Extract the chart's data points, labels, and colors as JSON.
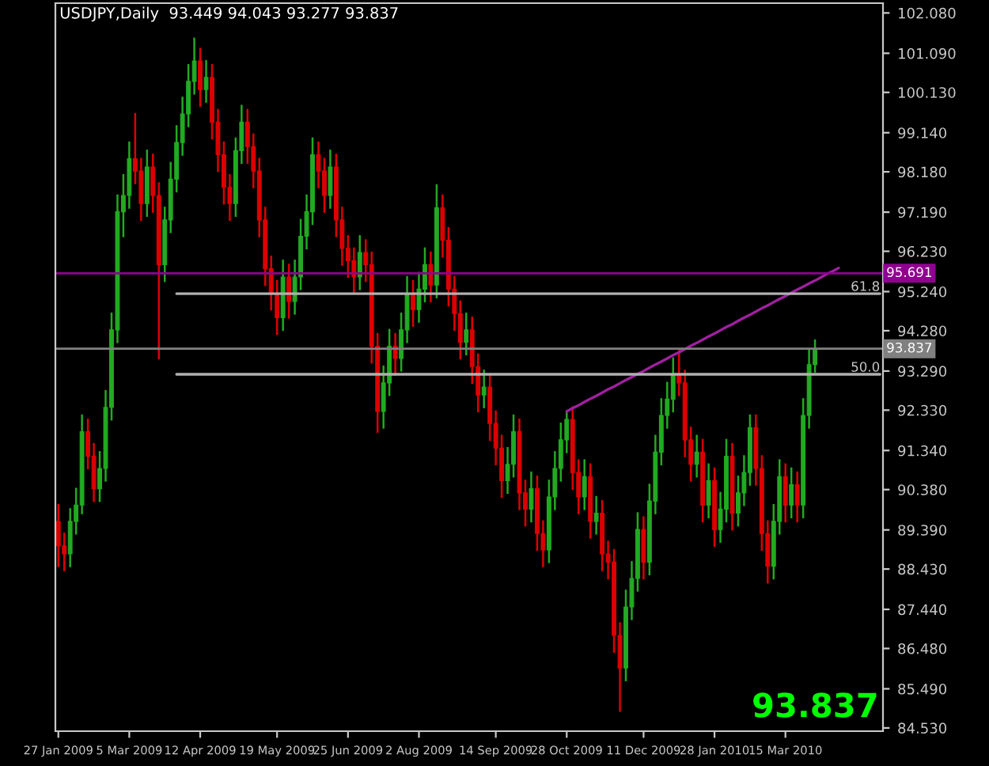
{
  "chart_data": {
    "type": "candlestick",
    "title": "USDJPY,Daily  93.449 94.043 93.277 93.837",
    "categories": [
      "27 Jan 2009",
      null,
      null,
      null,
      null,
      null,
      null,
      null,
      null,
      null,
      null,
      null,
      "5 Mar 2009",
      null,
      null,
      null,
      null,
      null,
      null,
      null,
      null,
      null,
      null,
      null,
      "12 Apr 2009",
      null,
      null,
      null,
      null,
      null,
      null,
      null,
      null,
      null,
      null,
      null,
      null,
      "19 May 2009",
      null,
      null,
      null,
      null,
      null,
      null,
      null,
      null,
      null,
      null,
      null,
      "25 Jun 2009",
      null,
      null,
      null,
      null,
      null,
      null,
      null,
      null,
      null,
      null,
      null,
      "2 Aug 2009",
      null,
      null,
      null,
      null,
      null,
      null,
      null,
      null,
      null,
      null,
      null,
      null,
      "14 Sep 2009",
      null,
      null,
      null,
      null,
      null,
      null,
      null,
      null,
      null,
      null,
      null,
      "28 Oct 2009",
      null,
      null,
      null,
      null,
      null,
      null,
      null,
      null,
      null,
      null,
      null,
      null,
      "11 Dec 2009",
      null,
      null,
      null,
      null,
      null,
      null,
      null,
      null,
      null,
      null,
      null,
      "28 Jan 2010",
      null,
      null,
      null,
      null,
      null,
      null,
      null,
      null,
      null,
      null,
      null,
      "15 Mar 2010",
      null,
      null,
      null,
      null,
      null,
      null,
      null,
      null,
      null,
      null,
      null,
      null,
      null,
      null,
      null,
      null
    ],
    "ohlc": [
      [
        89.6,
        90.0,
        88.5,
        89.0
      ],
      [
        89.0,
        89.3,
        88.4,
        88.8
      ],
      [
        88.8,
        89.9,
        88.5,
        89.6
      ],
      [
        89.6,
        90.4,
        89.3,
        90.0
      ],
      [
        90.0,
        92.2,
        89.8,
        91.8
      ],
      [
        91.8,
        92.1,
        90.9,
        91.2
      ],
      [
        91.2,
        91.5,
        90.1,
        90.4
      ],
      [
        90.4,
        91.3,
        90.1,
        90.9
      ],
      [
        90.9,
        92.8,
        90.6,
        92.4
      ],
      [
        92.4,
        94.7,
        92.1,
        94.3
      ],
      [
        94.3,
        97.6,
        94.0,
        97.2
      ],
      [
        97.2,
        98.1,
        96.6,
        97.6
      ],
      [
        97.6,
        98.9,
        97.3,
        98.5
      ],
      [
        98.5,
        99.6,
        97.9,
        98.2
      ],
      [
        98.2,
        98.5,
        97.0,
        97.4
      ],
      [
        97.4,
        98.7,
        97.1,
        98.3
      ],
      [
        98.3,
        98.6,
        97.2,
        97.6
      ],
      [
        97.6,
        97.9,
        93.6,
        95.9
      ],
      [
        95.9,
        97.3,
        95.5,
        97.0
      ],
      [
        97.0,
        98.4,
        96.7,
        98.0
      ],
      [
        98.0,
        99.3,
        97.7,
        98.9
      ],
      [
        98.9,
        100.0,
        98.6,
        99.6
      ],
      [
        99.6,
        100.8,
        99.3,
        100.4
      ],
      [
        100.4,
        101.45,
        100.1,
        100.9
      ],
      [
        100.9,
        101.2,
        99.8,
        100.2
      ],
      [
        100.2,
        100.9,
        99.9,
        100.5
      ],
      [
        100.5,
        100.8,
        99.0,
        99.4
      ],
      [
        99.4,
        99.7,
        98.2,
        98.6
      ],
      [
        98.6,
        98.9,
        97.4,
        97.8
      ],
      [
        97.8,
        98.1,
        97.0,
        97.4
      ],
      [
        97.4,
        99.0,
        97.1,
        98.7
      ],
      [
        98.7,
        99.8,
        98.4,
        99.4
      ],
      [
        99.4,
        99.7,
        98.4,
        98.8
      ],
      [
        98.8,
        99.1,
        97.8,
        98.2
      ],
      [
        98.2,
        98.5,
        96.6,
        97.0
      ],
      [
        97.0,
        97.3,
        95.4,
        95.8
      ],
      [
        95.8,
        96.1,
        94.8,
        95.2
      ],
      [
        95.2,
        95.5,
        94.2,
        94.6
      ],
      [
        94.6,
        96.0,
        94.3,
        95.6
      ],
      [
        95.6,
        95.9,
        94.6,
        95.0
      ],
      [
        95.0,
        96.0,
        94.7,
        95.6
      ],
      [
        95.6,
        97.0,
        95.3,
        96.6
      ],
      [
        96.6,
        97.6,
        96.3,
        97.2
      ],
      [
        97.2,
        99.0,
        96.9,
        98.6
      ],
      [
        98.6,
        98.9,
        97.8,
        98.2
      ],
      [
        98.2,
        98.5,
        97.2,
        97.6
      ],
      [
        97.6,
        98.7,
        97.3,
        98.3
      ],
      [
        98.3,
        98.6,
        96.6,
        97.0
      ],
      [
        97.0,
        97.3,
        95.9,
        96.3
      ],
      [
        96.3,
        96.6,
        95.6,
        96.0
      ],
      [
        96.0,
        96.3,
        95.2,
        95.6
      ],
      [
        95.6,
        96.6,
        95.3,
        96.2
      ],
      [
        96.2,
        96.5,
        95.5,
        95.9
      ],
      [
        95.9,
        96.2,
        93.5,
        93.9
      ],
      [
        93.9,
        94.2,
        91.8,
        92.3
      ],
      [
        92.3,
        93.4,
        91.9,
        93.0
      ],
      [
        93.0,
        94.3,
        92.7,
        93.9
      ],
      [
        93.9,
        94.2,
        93.2,
        93.6
      ],
      [
        93.6,
        94.7,
        93.3,
        94.3
      ],
      [
        94.3,
        95.6,
        94.0,
        95.2
      ],
      [
        95.2,
        95.5,
        94.4,
        94.8
      ],
      [
        94.8,
        95.7,
        94.5,
        95.3
      ],
      [
        95.3,
        96.3,
        95.0,
        95.9
      ],
      [
        95.9,
        96.2,
        95.0,
        95.4
      ],
      [
        95.4,
        97.85,
        95.1,
        97.3
      ],
      [
        97.3,
        97.6,
        96.1,
        96.5
      ],
      [
        96.5,
        96.8,
        94.9,
        95.3
      ],
      [
        95.3,
        95.6,
        94.3,
        94.7
      ],
      [
        94.7,
        95.0,
        93.6,
        94.0
      ],
      [
        94.0,
        94.7,
        93.7,
        94.3
      ],
      [
        94.3,
        94.6,
        93.0,
        93.4
      ],
      [
        93.4,
        93.7,
        92.3,
        92.7
      ],
      [
        92.7,
        93.3,
        92.4,
        92.9
      ],
      [
        92.9,
        93.2,
        91.6,
        92.0
      ],
      [
        92.0,
        92.3,
        91.0,
        91.4
      ],
      [
        91.4,
        91.7,
        90.2,
        90.6
      ],
      [
        90.6,
        91.4,
        90.3,
        91.0
      ],
      [
        91.0,
        92.2,
        90.7,
        91.8
      ],
      [
        91.8,
        92.1,
        89.9,
        90.3
      ],
      [
        90.3,
        90.6,
        89.5,
        89.9
      ],
      [
        89.9,
        90.8,
        89.6,
        90.4
      ],
      [
        90.4,
        90.7,
        88.9,
        89.3
      ],
      [
        89.3,
        89.6,
        88.5,
        88.9
      ],
      [
        88.9,
        90.6,
        88.6,
        90.2
      ],
      [
        90.2,
        91.3,
        89.9,
        90.9
      ],
      [
        90.9,
        92.0,
        90.6,
        91.6
      ],
      [
        91.6,
        92.3,
        91.3,
        92.1
      ],
      [
        92.1,
        92.4,
        90.4,
        90.8
      ],
      [
        90.8,
        91.1,
        89.8,
        90.2
      ],
      [
        90.2,
        91.1,
        89.9,
        90.7
      ],
      [
        90.7,
        91.0,
        89.2,
        89.6
      ],
      [
        89.6,
        90.2,
        89.3,
        89.8
      ],
      [
        89.8,
        90.1,
        88.4,
        88.8
      ],
      [
        88.8,
        89.1,
        88.2,
        88.6
      ],
      [
        88.6,
        88.9,
        86.4,
        86.8
      ],
      [
        86.8,
        87.1,
        84.95,
        86.0
      ],
      [
        86.0,
        87.9,
        85.7,
        87.5
      ],
      [
        87.5,
        88.6,
        87.2,
        88.2
      ],
      [
        88.2,
        89.8,
        87.9,
        89.4
      ],
      [
        89.4,
        89.7,
        88.2,
        88.6
      ],
      [
        88.6,
        90.5,
        88.3,
        90.1
      ],
      [
        90.1,
        91.7,
        89.8,
        91.3
      ],
      [
        91.3,
        92.6,
        91.0,
        92.2
      ],
      [
        92.2,
        93.0,
        91.9,
        92.6
      ],
      [
        92.6,
        93.6,
        92.3,
        93.2
      ],
      [
        93.2,
        93.8,
        92.7,
        93.0
      ],
      [
        93.0,
        93.3,
        91.2,
        91.6
      ],
      [
        91.6,
        91.9,
        90.6,
        91.0
      ],
      [
        91.0,
        91.7,
        90.7,
        91.3
      ],
      [
        91.3,
        91.6,
        89.6,
        90.0
      ],
      [
        90.0,
        91.0,
        89.7,
        90.6
      ],
      [
        90.6,
        90.9,
        89.0,
        89.4
      ],
      [
        89.4,
        90.3,
        89.1,
        89.9
      ],
      [
        89.9,
        91.6,
        89.6,
        91.2
      ],
      [
        91.2,
        91.5,
        89.4,
        89.8
      ],
      [
        89.8,
        90.7,
        89.5,
        90.3
      ],
      [
        90.3,
        91.2,
        90.0,
        90.8
      ],
      [
        90.8,
        92.2,
        90.5,
        91.9
      ],
      [
        91.9,
        92.2,
        90.5,
        90.9
      ],
      [
        90.9,
        91.2,
        88.9,
        89.3
      ],
      [
        89.3,
        89.6,
        88.1,
        88.5
      ],
      [
        88.5,
        90.0,
        88.2,
        89.6
      ],
      [
        89.6,
        91.1,
        89.3,
        90.7
      ],
      [
        90.7,
        91.0,
        89.6,
        90.0
      ],
      [
        90.0,
        90.9,
        89.7,
        90.5
      ],
      [
        90.5,
        90.8,
        89.6,
        90.0
      ],
      [
        90.0,
        92.6,
        89.7,
        92.2
      ],
      [
        92.2,
        93.8,
        91.9,
        93.449
      ],
      [
        93.449,
        94.043,
        93.277,
        93.837
      ],
      null,
      null,
      null,
      null,
      null,
      null,
      null,
      null,
      null,
      null,
      null
    ],
    "colors": [
      "#dd0000",
      "#dd0000",
      "#22aa22",
      "#22aa22",
      "#22aa22",
      "#dd0000",
      "#dd0000",
      "#22aa22",
      "#22aa22",
      "#22aa22",
      "#22aa22",
      "#22aa22",
      "#22aa22",
      "#dd0000",
      "#dd0000",
      "#22aa22",
      "#dd0000",
      "#dd0000",
      "#22aa22",
      "#22aa22",
      "#22aa22",
      "#22aa22",
      "#22aa22",
      "#22aa22",
      "#dd0000",
      "#22aa22",
      "#dd0000",
      "#dd0000",
      "#dd0000",
      "#dd0000",
      "#22aa22",
      "#22aa22",
      "#dd0000",
      "#dd0000",
      "#dd0000",
      "#dd0000",
      "#dd0000",
      "#dd0000",
      "#22aa22",
      "#dd0000",
      "#22aa22",
      "#22aa22",
      "#22aa22",
      "#22aa22",
      "#dd0000",
      "#dd0000",
      "#22aa22",
      "#dd0000",
      "#dd0000",
      "#dd0000",
      "#dd0000",
      "#22aa22",
      "#dd0000",
      "#dd0000",
      "#dd0000",
      "#22aa22",
      "#22aa22",
      "#dd0000",
      "#22aa22",
      "#22aa22",
      "#dd0000",
      "#22aa22",
      "#22aa22",
      "#dd0000",
      "#22aa22",
      "#dd0000",
      "#dd0000",
      "#dd0000",
      "#dd0000",
      "#22aa22",
      "#dd0000",
      "#dd0000",
      "#22aa22",
      "#dd0000",
      "#dd0000",
      "#dd0000",
      "#22aa22",
      "#22aa22",
      "#dd0000",
      "#dd0000",
      "#22aa22",
      "#dd0000",
      "#dd0000",
      "#22aa22",
      "#22aa22",
      "#22aa22",
      "#22aa22",
      "#dd0000",
      "#dd0000",
      "#22aa22",
      "#dd0000",
      "#22aa22",
      "#dd0000",
      "#dd0000",
      "#dd0000",
      "#dd0000",
      "#22aa22",
      "#22aa22",
      "#22aa22",
      "#dd0000",
      "#22aa22",
      "#22aa22",
      "#22aa22",
      "#22aa22",
      "#22aa22",
      "#dd0000",
      "#dd0000",
      "#dd0000",
      "#22aa22",
      "#dd0000",
      "#22aa22",
      "#dd0000",
      "#22aa22",
      "#22aa22",
      "#dd0000",
      "#22aa22",
      "#22aa22",
      "#22aa22",
      "#dd0000",
      "#dd0000",
      "#dd0000",
      "#22aa22",
      "#22aa22",
      "#dd0000",
      "#22aa22",
      "#dd0000",
      "#22aa22",
      "#22aa22",
      "#22aa22",
      null,
      null,
      null,
      null,
      null,
      null,
      null,
      null,
      null,
      null,
      null
    ],
    "series": [
      {
        "type": "line",
        "color": "#a020a0",
        "values": [
          null,
          null,
          null,
          null,
          null,
          null,
          null,
          null,
          null,
          null,
          null,
          null,
          null,
          null,
          null,
          null,
          null,
          null,
          null,
          null,
          null,
          null,
          null,
          null,
          null,
          null,
          null,
          null,
          null,
          null,
          null,
          null,
          null,
          null,
          null,
          null,
          null,
          null,
          null,
          null,
          null,
          null,
          null,
          null,
          null,
          null,
          null,
          null,
          null,
          null,
          null,
          null,
          null,
          null,
          null,
          null,
          null,
          null,
          null,
          null,
          null,
          null,
          null,
          null,
          null,
          null,
          null,
          null,
          null,
          null,
          null,
          null,
          null,
          null,
          null,
          null,
          null,
          null,
          null,
          null,
          null,
          null,
          null,
          null,
          null,
          null,
          92.3,
          92.38,
          92.45,
          92.53,
          92.61,
          92.68,
          92.76,
          92.84,
          92.91,
          92.99,
          93.07,
          93.14,
          93.22,
          93.29,
          93.37,
          93.45,
          93.52,
          93.6,
          93.68,
          93.75,
          93.83,
          93.91,
          93.98,
          94.06,
          94.14,
          94.21,
          94.29,
          94.37,
          94.44,
          94.52,
          94.6,
          94.67,
          94.75,
          94.83,
          94.9,
          94.98,
          95.06,
          95.13,
          95.21,
          95.29,
          95.36,
          95.44,
          95.51,
          95.59,
          95.67,
          95.74,
          95.82,
          null,
          null,
          null,
          null,
          null,
          null,
          null
        ]
      },
      {
        "type": "line",
        "name": "61.8",
        "color": "#b0b0b0",
        "values": [
          null,
          null,
          null,
          null,
          null,
          null,
          null,
          null,
          null,
          null,
          null,
          null,
          null,
          null,
          null,
          null,
          null,
          null,
          null,
          null,
          95.19,
          95.19,
          95.19,
          95.19,
          95.19,
          95.19,
          95.19,
          95.19,
          95.19,
          95.19,
          95.19,
          95.19,
          95.19,
          95.19,
          95.19,
          95.19,
          95.19,
          95.19,
          95.19,
          95.19,
          95.19,
          95.19,
          95.19,
          95.19,
          95.19,
          95.19,
          95.19,
          95.19,
          95.19,
          95.19,
          95.19,
          95.19,
          95.19,
          95.19,
          95.19,
          95.19,
          95.19,
          95.19,
          95.19,
          95.19,
          95.19,
          95.19,
          95.19,
          95.19,
          95.19,
          95.19,
          95.19,
          95.19,
          95.19,
          95.19,
          95.19,
          95.19,
          95.19,
          95.19,
          95.19,
          95.19,
          95.19,
          95.19,
          95.19,
          95.19,
          95.19,
          95.19,
          95.19,
          95.19,
          95.19,
          95.19,
          95.19,
          95.19,
          95.19,
          95.19,
          95.19,
          95.19,
          95.19,
          95.19,
          95.19,
          95.19,
          95.19,
          95.19,
          95.19,
          95.19,
          95.19,
          95.19,
          95.19,
          95.19,
          95.19,
          95.19,
          95.19,
          95.19,
          95.19,
          95.19,
          95.19,
          95.19,
          95.19,
          95.19,
          95.19,
          95.19,
          95.19,
          95.19,
          95.19,
          95.19,
          95.19,
          95.19,
          95.19,
          95.19,
          95.19,
          95.19,
          95.19,
          95.19,
          95.19,
          95.19,
          95.19,
          95.19,
          95.19,
          95.19,
          95.19,
          95.19,
          95.19,
          95.19,
          95.19,
          95.19
        ]
      },
      {
        "type": "line",
        "name": "50.0",
        "color": "#b0b0b0",
        "values": [
          null,
          null,
          null,
          null,
          null,
          null,
          null,
          null,
          null,
          null,
          null,
          null,
          null,
          null,
          null,
          null,
          null,
          null,
          null,
          null,
          93.21,
          93.21,
          93.21,
          93.21,
          93.21,
          93.21,
          93.21,
          93.21,
          93.21,
          93.21,
          93.21,
          93.21,
          93.21,
          93.21,
          93.21,
          93.21,
          93.21,
          93.21,
          93.21,
          93.21,
          93.21,
          93.21,
          93.21,
          93.21,
          93.21,
          93.21,
          93.21,
          93.21,
          93.21,
          93.21,
          93.21,
          93.21,
          93.21,
          93.21,
          93.21,
          93.21,
          93.21,
          93.21,
          93.21,
          93.21,
          93.21,
          93.21,
          93.21,
          93.21,
          93.21,
          93.21,
          93.21,
          93.21,
          93.21,
          93.21,
          93.21,
          93.21,
          93.21,
          93.21,
          93.21,
          93.21,
          93.21,
          93.21,
          93.21,
          93.21,
          93.21,
          93.21,
          93.21,
          93.21,
          93.21,
          93.21,
          93.21,
          93.21,
          93.21,
          93.21,
          93.21,
          93.21,
          93.21,
          93.21,
          93.21,
          93.21,
          93.21,
          93.21,
          93.21,
          93.21,
          93.21,
          93.21,
          93.21,
          93.21,
          93.21,
          93.21,
          93.21,
          93.21,
          93.21,
          93.21,
          93.21,
          93.21,
          93.21,
          93.21,
          93.21,
          93.21,
          93.21,
          93.21,
          93.21,
          93.21,
          93.21,
          93.21,
          93.21,
          93.21,
          93.21,
          93.21,
          93.21,
          93.21,
          93.21,
          93.21,
          93.21,
          93.21,
          93.21,
          93.21,
          93.21,
          93.21,
          93.21,
          93.21,
          93.21,
          93.21
        ]
      }
    ],
    "ref_lines": [
      {
        "axis": "y",
        "value": 95.691,
        "label": "95.691",
        "color": "#900090"
      },
      {
        "axis": "y",
        "value": 93.837,
        "label": "93.837",
        "color": "#808080"
      }
    ],
    "annotations": [
      "93.837"
    ],
    "ylim": [
      84.45,
      102.32
    ],
    "yticks": [
      {
        "value": 84.53,
        "label": "84.530"
      },
      {
        "value": 85.49,
        "label": "85.490"
      },
      {
        "value": 86.48,
        "label": "86.480"
      },
      {
        "value": 87.44,
        "label": "87.440"
      },
      {
        "value": 88.43,
        "label": "88.430"
      },
      {
        "value": 89.39,
        "label": "89.390"
      },
      {
        "value": 90.38,
        "label": "90.380"
      },
      {
        "value": 91.34,
        "label": "91.340"
      },
      {
        "value": 92.33,
        "label": "92.330"
      },
      {
        "value": 93.29,
        "label": "93.290"
      },
      {
        "value": 94.28,
        "label": "94.280"
      },
      {
        "value": 95.24,
        "label": "95.240"
      },
      {
        "value": 96.23,
        "label": "96.230"
      },
      {
        "value": 97.19,
        "label": "97.190"
      },
      {
        "value": 98.18,
        "label": "98.180"
      },
      {
        "value": 99.14,
        "label": "99.140"
      },
      {
        "value": 100.13,
        "label": "100.130"
      },
      {
        "value": 101.09,
        "label": "101.090"
      },
      {
        "value": 102.08,
        "label": "102.080"
      }
    ]
  }
}
